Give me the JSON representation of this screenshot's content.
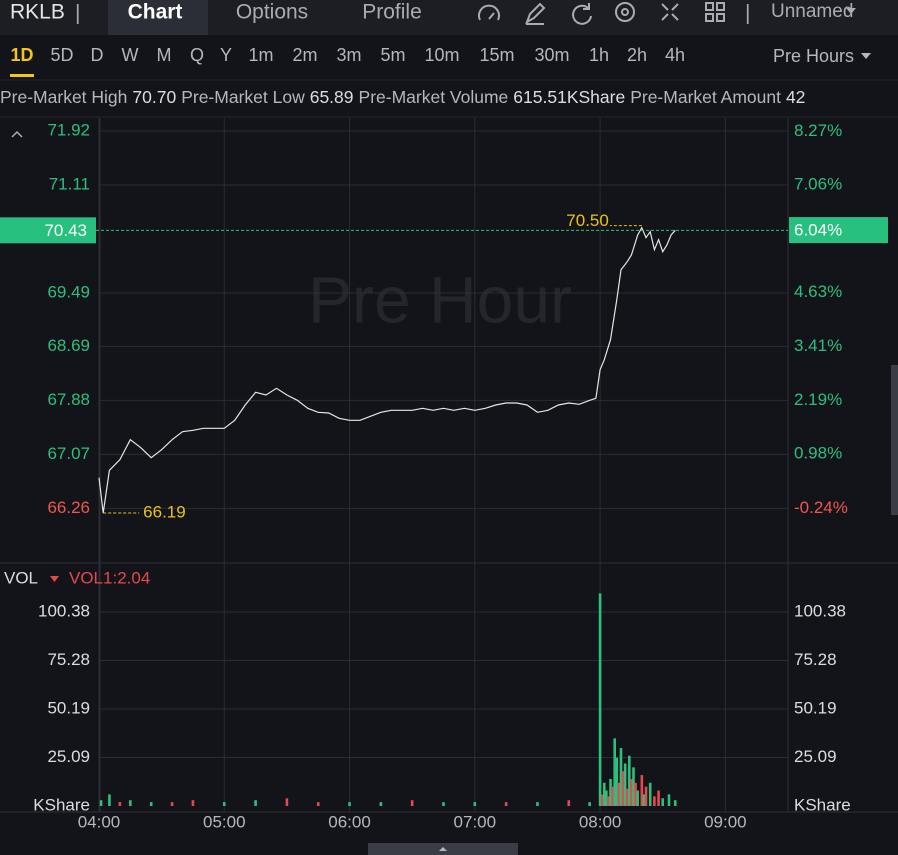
{
  "header": {
    "symbol": "RKLB",
    "tabs": [
      "Chart",
      "Options",
      "Profile"
    ],
    "layout_name": "Unnamed"
  },
  "intervals": [
    "1D",
    "5D",
    "D",
    "W",
    "M",
    "Q",
    "Y",
    "1m",
    "2m",
    "3m",
    "5m",
    "10m",
    "15m",
    "30m",
    "1h",
    "2h",
    "4h"
  ],
  "session": "Pre Hours",
  "stats": [
    {
      "label": "Pre-Market High",
      "value": "70.70"
    },
    {
      "label": "Pre-Market Low",
      "value": "65.89"
    },
    {
      "label": "Pre-Market Volume",
      "value": "615.51KShare"
    },
    {
      "label": "Pre-Market Amount",
      "value": "42"
    }
  ],
  "chart_data": [
    {
      "type": "line",
      "watermark": "Pre Hour",
      "color": "#e6e6e6",
      "grid": true,
      "x": [
        "04:00",
        "04:02",
        "04:05",
        "04:10",
        "04:15",
        "04:20",
        "04:25",
        "04:30",
        "04:35",
        "04:40",
        "04:45",
        "04:50",
        "04:55",
        "05:00",
        "05:05",
        "05:10",
        "05:15",
        "05:20",
        "05:25",
        "05:30",
        "05:35",
        "05:40",
        "05:45",
        "05:50",
        "05:55",
        "06:00",
        "06:05",
        "06:10",
        "06:15",
        "06:20",
        "06:25",
        "06:30",
        "06:35",
        "06:40",
        "06:45",
        "06:50",
        "06:55",
        "07:00",
        "07:05",
        "07:10",
        "07:15",
        "07:20",
        "07:25",
        "07:30",
        "07:35",
        "07:40",
        "07:45",
        "07:50",
        "07:55",
        "07:58",
        "08:00",
        "08:02",
        "08:05",
        "08:08",
        "08:10",
        "08:13",
        "08:15",
        "08:18",
        "08:20",
        "08:22",
        "08:24",
        "08:26",
        "08:28",
        "08:30",
        "08:32",
        "08:34",
        "08:36"
      ],
      "values": [
        66.72,
        66.19,
        66.83,
        66.99,
        67.29,
        67.17,
        67.02,
        67.14,
        67.29,
        67.41,
        67.43,
        67.46,
        67.46,
        67.46,
        67.58,
        67.81,
        68.0,
        67.96,
        68.06,
        67.96,
        67.88,
        67.76,
        67.7,
        67.69,
        67.61,
        67.58,
        67.58,
        67.64,
        67.7,
        67.73,
        67.73,
        67.73,
        67.76,
        67.73,
        67.76,
        67.73,
        67.76,
        67.73,
        67.76,
        67.81,
        67.84,
        67.84,
        67.81,
        67.7,
        67.73,
        67.81,
        67.84,
        67.82,
        67.88,
        67.91,
        68.34,
        68.49,
        68.79,
        69.39,
        69.84,
        69.96,
        70.06,
        70.36,
        70.47,
        70.32,
        70.41,
        70.14,
        70.29,
        70.11,
        70.21,
        70.36,
        70.43
      ],
      "xlim": [
        "04:00",
        "09:30"
      ],
      "ylim": [
        65.44,
        72.115
      ],
      "yticks": [
        71.92,
        71.11,
        69.49,
        68.69,
        67.88,
        67.07,
        66.26
      ],
      "y2lim": [
        -1.475,
        8.57
      ],
      "y2ticks": [
        {
          "value": 8.27,
          "label": "8.27%"
        },
        {
          "value": 7.06,
          "label": "7.06%"
        },
        {
          "value": 4.63,
          "label": "4.63%"
        },
        {
          "value": 3.41,
          "label": "3.41%"
        },
        {
          "value": 2.19,
          "label": "2.19%"
        },
        {
          "value": 0.98,
          "label": "0.98%"
        },
        {
          "value": -0.24,
          "label": "-0.24%"
        }
      ],
      "last_value": 70.43,
      "last_change": {
        "value": 6.04,
        "label": "6.04%"
      },
      "annotations": [
        {
          "x": "08:20",
          "value": 70.5,
          "label": "70.50"
        },
        {
          "x": "04:02",
          "value": 66.19,
          "label": "66.19"
        }
      ]
    },
    {
      "type": "bar",
      "indicator": "VOL",
      "indicator_value": "VOL1:2.04",
      "grid": true,
      "x": [
        "04:01",
        "04:05",
        "04:10",
        "04:15",
        "04:25",
        "04:35",
        "04:45",
        "05:00",
        "05:15",
        "05:30",
        "05:45",
        "06:00",
        "06:15",
        "06:30",
        "06:45",
        "07:00",
        "07:15",
        "07:30",
        "07:45",
        "07:55",
        "08:00",
        "08:01",
        "08:02",
        "08:03",
        "08:04",
        "08:05",
        "08:06",
        "08:07",
        "08:08",
        "08:09",
        "08:10",
        "08:11",
        "08:12",
        "08:13",
        "08:14",
        "08:15",
        "08:16",
        "08:17",
        "08:18",
        "08:20",
        "08:21",
        "08:22",
        "08:24",
        "08:26",
        "08:28",
        "08:30",
        "08:33",
        "08:36"
      ],
      "values": [
        3,
        6,
        2,
        3,
        2,
        2,
        3,
        2,
        3,
        4,
        2,
        2,
        2,
        3,
        2,
        2,
        2,
        2,
        3,
        2,
        110,
        6,
        12,
        8,
        5,
        14,
        10,
        35,
        25,
        12,
        30,
        18,
        22,
        9,
        26,
        14,
        20,
        12,
        8,
        16,
        6,
        10,
        12,
        5,
        8,
        4,
        6,
        3
      ],
      "colors": [
        "#2dbf7e",
        "#2dbf7e",
        "#e5484d",
        "#2dbf7e",
        "#2dbf7e",
        "#e5484d",
        "#e5484d",
        "#2dbf7e",
        "#2dbf7e",
        "#e5484d",
        "#e5484d",
        "#2dbf7e",
        "#2dbf7e",
        "#e5484d",
        "#2dbf7e",
        "#2dbf7e",
        "#e5484d",
        "#2dbf7e",
        "#e5484d",
        "#2dbf7e",
        "#2dbf7e",
        "#e5484d",
        "#2dbf7e",
        "#2dbf7e",
        "#e5484d",
        "#2dbf7e",
        "#e5484d",
        "#2dbf7e",
        "#2dbf7e",
        "#e5484d",
        "#2dbf7e",
        "#e5484d",
        "#2dbf7e",
        "#e5484d",
        "#2dbf7e",
        "#e5484d",
        "#2dbf7e",
        "#e5484d",
        "#2dbf7e",
        "#e5484d",
        "#2dbf7e",
        "#e5484d",
        "#2dbf7e",
        "#e5484d",
        "#e5484d",
        "#2dbf7e",
        "#2dbf7e",
        "#2dbf7e"
      ],
      "xlim": [
        "04:00",
        "09:30"
      ],
      "xticks": [
        "04:00",
        "05:00",
        "06:00",
        "07:00",
        "08:00",
        "09:00"
      ],
      "ylim": [
        0,
        125.7
      ],
      "yticks": [
        {
          "value": 0,
          "label": "KShare"
        },
        25.09,
        50.19,
        75.28,
        100.38
      ]
    }
  ]
}
